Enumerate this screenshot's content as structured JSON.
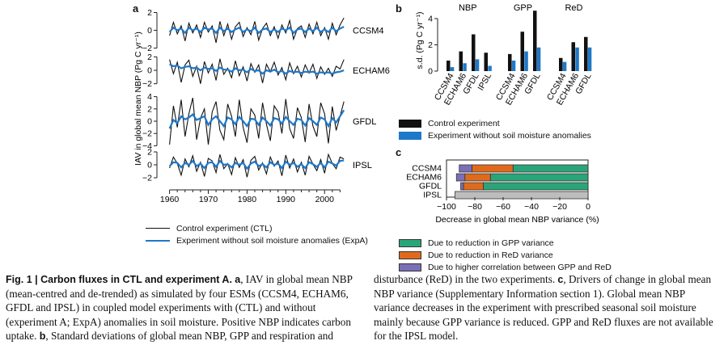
{
  "panels": {
    "a": "a",
    "b": "b",
    "c": "c"
  },
  "colors": {
    "ctl": "#111111",
    "expa": "#1f78c8",
    "gpp": "#2aa57a",
    "red": "#e06a1c",
    "corr": "#7b6fb8",
    "na": "#bdbdbd"
  },
  "chart_data": [
    {
      "type": "line",
      "panel": "a",
      "ylabel": "IAV in global mean NBP (Pg C yr⁻¹)",
      "x_ticks": [
        "1960",
        "1970",
        "1980",
        "1990",
        "2000"
      ],
      "xlim": [
        1958,
        2006
      ],
      "models": [
        {
          "name": "CCSM4",
          "ticks": [
            "2",
            "0",
            "−2"
          ],
          "ylim": [
            -2.5,
            2.5
          ],
          "ctl": [
            -0.6,
            0.9,
            -0.4,
            0.5,
            -1.2,
            0.8,
            -0.3,
            0.6,
            -0.8,
            0.9,
            -0.2,
            0.5,
            -1.4,
            1.0,
            -0.6,
            0.7,
            -1.0,
            0.4,
            0.9,
            -0.7,
            0.3,
            -0.5,
            1.0,
            -1.1,
            0.2,
            0.8,
            -0.6,
            0.4,
            -0.9,
            0.6,
            -0.3,
            1.1,
            -1.0,
            0.2,
            0.5,
            -0.8,
            0.7,
            -0.4,
            0.9,
            -0.6,
            0.3,
            -1.0,
            0.8,
            -0.5,
            0.6,
            1.4
          ],
          "expa": [
            -0.2,
            0.3,
            0.0,
            0.2,
            -0.3,
            0.3,
            0.0,
            0.2,
            -0.2,
            0.3,
            0.1,
            0.2,
            -0.3,
            0.3,
            -0.1,
            0.2,
            -0.2,
            0.1,
            0.3,
            -0.2,
            0.1,
            -0.1,
            0.3,
            -0.3,
            0.1,
            0.2,
            -0.2,
            0.1,
            -0.2,
            0.2,
            0.0,
            0.3,
            -0.3,
            0.1,
            0.2,
            -0.2,
            0.2,
            -0.1,
            0.3,
            -0.2,
            0.1,
            -0.2,
            0.3,
            -0.1,
            0.2,
            0.4
          ]
        },
        {
          "name": "ECHAM6",
          "ticks": [
            "2",
            "0",
            "−2"
          ],
          "ylim": [
            -3.0,
            3.0
          ],
          "ctl": [
            1.6,
            -0.5,
            1.2,
            -1.8,
            0.8,
            1.5,
            -0.9,
            0.6,
            -2.0,
            1.3,
            -0.4,
            0.9,
            -1.5,
            1.7,
            -0.6,
            0.3,
            -1.1,
            1.4,
            -0.8,
            0.5,
            -1.6,
            1.0,
            -0.3,
            0.8,
            -1.9,
            0.9,
            -0.2,
            1.2,
            -0.7,
            0.4,
            -1.4,
            1.1,
            -0.5,
            0.6,
            -1.0,
            0.8,
            -0.4,
            0.9,
            -1.2,
            0.5,
            -0.6,
            0.3,
            -0.9,
            0.6,
            0.2,
            1.6
          ],
          "expa": [
            0.9,
            0.6,
            0.7,
            0.3,
            0.5,
            0.6,
            0.3,
            0.4,
            0.0,
            0.4,
            0.2,
            0.3,
            -0.1,
            0.4,
            0.1,
            0.1,
            -0.2,
            0.3,
            0.0,
            0.1,
            -0.3,
            0.2,
            -0.1,
            0.0,
            -0.5,
            0.0,
            -0.2,
            0.1,
            -0.3,
            -0.1,
            -0.5,
            -0.1,
            -0.3,
            -0.2,
            -0.4,
            -0.2,
            -0.3,
            -0.2,
            -0.5,
            -0.3,
            -0.4,
            -0.3,
            -0.5,
            -0.3,
            -0.2,
            0.0
          ]
        },
        {
          "name": "GFDL",
          "ticks": [
            "4",
            "2",
            "0",
            "−2",
            "−4"
          ],
          "ylim": [
            -5.0,
            5.0
          ],
          "ctl": [
            -3.8,
            2.5,
            -1.0,
            3.5,
            -2.5,
            1.2,
            3.8,
            -3.0,
            0.5,
            2.0,
            -3.8,
            1.5,
            3.2,
            -1.5,
            -3.0,
            2.8,
            0.8,
            -2.5,
            3.5,
            -1.0,
            -3.5,
            2.0,
            1.0,
            -2.8,
            3.0,
            -0.5,
            -3.2,
            2.5,
            1.5,
            -2.0,
            3.6,
            -1.2,
            -2.8,
            2.2,
            0.6,
            -3.4,
            2.8,
            -0.8,
            -2.5,
            3.0,
            1.2,
            -3.6,
            2.4,
            -1.5,
            0.8,
            3.2
          ],
          "expa": [
            -1.2,
            0.2,
            -0.3,
            0.8,
            0.3,
            0.6,
            1.1,
            0.2,
            0.5,
            0.8,
            -0.6,
            0.3,
            0.8,
            0.0,
            -0.8,
            0.6,
            0.3,
            -0.5,
            0.7,
            0.0,
            -0.8,
            0.4,
            0.3,
            -0.6,
            0.6,
            0.0,
            -0.7,
            0.5,
            0.3,
            -0.4,
            0.7,
            0.0,
            -0.6,
            0.4,
            0.2,
            -0.7,
            0.5,
            0.0,
            -0.6,
            0.6,
            0.3,
            -0.8,
            0.5,
            -0.2,
            0.8,
            1.8
          ]
        },
        {
          "name": "IPSL",
          "ticks": [
            "2",
            "0",
            "−2"
          ],
          "ylim": [
            -3.0,
            3.0
          ],
          "ctl": [
            -0.5,
            1.2,
            0.2,
            -1.6,
            0.9,
            -0.3,
            1.4,
            -1.0,
            0.4,
            -1.8,
            1.0,
            0.6,
            -1.2,
            1.6,
            -0.6,
            0.2,
            -1.5,
            1.1,
            -0.4,
            0.8,
            -1.9,
            0.7,
            1.3,
            -0.8,
            0.3,
            -1.4,
            1.2,
            -0.2,
            0.6,
            -1.7,
            1.5,
            -0.5,
            0.9,
            -1.1,
            0.4,
            -1.6,
            1.3,
            0.1,
            -0.9,
            0.8,
            -1.3,
            1.6,
            0.2,
            -0.6,
            1.2,
            0.9
          ],
          "expa": [
            -0.2,
            0.4,
            0.3,
            -0.4,
            0.3,
            0.0,
            0.6,
            -0.2,
            0.2,
            -0.5,
            0.3,
            0.4,
            -0.3,
            0.6,
            0.0,
            0.1,
            -0.4,
            0.3,
            0.0,
            0.3,
            -0.6,
            0.2,
            0.5,
            -0.2,
            0.1,
            -0.4,
            0.4,
            0.0,
            0.2,
            -0.5,
            0.5,
            0.0,
            0.3,
            -0.3,
            0.1,
            -0.5,
            0.4,
            0.1,
            -0.3,
            0.3,
            -0.4,
            0.5,
            0.2,
            -0.1,
            0.6,
            0.7
          ]
        }
      ]
    },
    {
      "type": "bar",
      "panel": "b",
      "ylabel": "s.d. (Pg C yr⁻¹)",
      "ylim": [
        0,
        4.8
      ],
      "y_ticks": [
        "4",
        "2",
        "0"
      ],
      "y_tick_values": [
        4,
        2,
        0
      ],
      "groups": [
        {
          "name": "NBP",
          "categories": [
            "CCSM4",
            "ECHAM6",
            "GFDL",
            "IPSL"
          ],
          "ctl": [
            0.8,
            1.5,
            2.8,
            1.4
          ],
          "expa": [
            0.3,
            0.6,
            0.9,
            0.4
          ]
        },
        {
          "name": "GPP",
          "categories": [
            "CCSM4",
            "ECHAM6",
            "GFDL"
          ],
          "ctl": [
            1.3,
            3.0,
            4.6
          ],
          "expa": [
            0.8,
            1.5,
            1.8
          ]
        },
        {
          "name": "ReD",
          "categories": [
            "CCSM4",
            "ECHAM6",
            "GFDL"
          ],
          "ctl": [
            1.0,
            2.2,
            2.6
          ],
          "expa": [
            0.7,
            1.8,
            1.8
          ]
        }
      ]
    },
    {
      "type": "bar",
      "panel": "c",
      "orientation": "horizontal-stacked",
      "xlabel": "Decrease in global mean NBP variance (%)",
      "xlim": [
        -100,
        0
      ],
      "x_ticks": [
        "−100",
        "−80",
        "−60",
        "−40",
        "−20",
        "0"
      ],
      "x_tick_values": [
        -100,
        -80,
        -60,
        -40,
        -20,
        0
      ],
      "categories": [
        "CCSM4",
        "ECHAM6",
        "GFDL",
        "IPSL"
      ],
      "series": [
        {
          "name": "Due to reduction in GPP variance",
          "key": "gpp",
          "values": [
            -53,
            -69,
            -74,
            0
          ]
        },
        {
          "name": "Due to reduction in ReD variance",
          "key": "red",
          "values": [
            -29,
            -18,
            -14,
            0
          ]
        },
        {
          "name": "Due to higher correlation between GPP and ReD",
          "key": "corr",
          "values": [
            -9,
            -6,
            -2,
            0
          ]
        },
        {
          "name": "",
          "key": "na",
          "values": [
            0,
            0,
            0,
            -94
          ]
        }
      ]
    }
  ],
  "legend_a": {
    "ctl": "Control experiment (CTL)",
    "expa": "Experiment without soil moisture anomalies (ExpA)"
  },
  "legend_b": {
    "ctl": "Control experiment",
    "expa": "Experiment without soil moisture anomalies"
  },
  "legend_c": {
    "gpp": "Due to reduction in GPP variance",
    "red": "Due to reduction in ReD variance",
    "corr": "Due to higher correlation between GPP and ReD"
  },
  "caption": {
    "fig_label": "Fig. 1 | Carbon fluxes in CTL and experiment A.",
    "a_label": "a",
    "a_text": ", IAV in global mean NBP (mean-centred and de-trended) as simulated by four ESMs (CCSM4, ECHAM6, GFDL and IPSL) in coupled model experiments with (CTL) and without (experiment A; ExpA) anomalies in soil moisture. Positive NBP indicates carbon uptake.",
    "b_label": "b",
    "b_text": ", Standard deviations of global mean NBP, GPP and respiration and disturbance (ReD) in the two experiments.",
    "c_label": "c",
    "c_text": ", Drivers of change in global mean NBP variance (Supplementary Information section 1). Global mean NBP variance decreases in the experiment with prescribed seasonal soil moisture mainly because GPP variance is reduced. GPP and ReD fluxes are not available for the IPSL model."
  }
}
